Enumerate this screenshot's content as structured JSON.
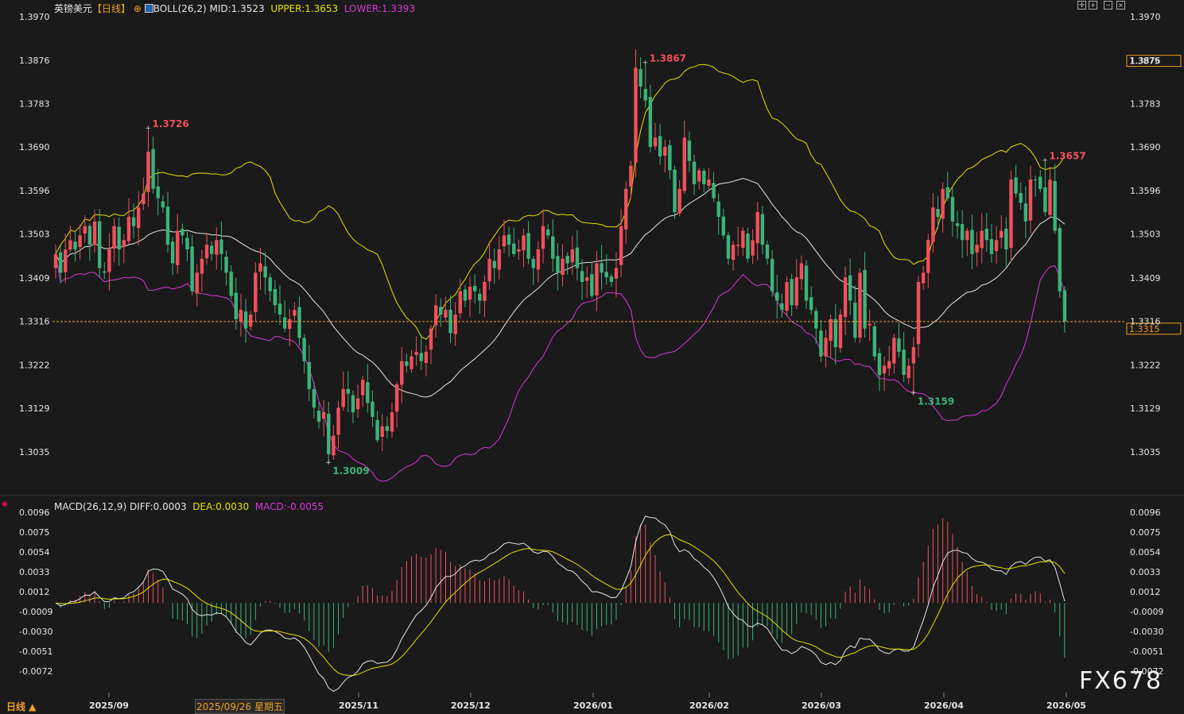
{
  "header": {
    "symbol": "英镑美元",
    "period": "【日线】",
    "boll_label": "BOLL(26,2)",
    "boll_mid": "MID:1.3523",
    "boll_upper": "UPPER:1.3653",
    "boll_lower": "LOWER:1.3393",
    "macd_label": "MACD(26,12,9)",
    "macd_diff": "DIFF:0.0003",
    "macd_dea": "DEA:0.0030",
    "macd_macd": "MACD:-0.0055"
  },
  "bottom": {
    "period_button": "日线 ▲",
    "crosshair_date": "2025/09/26 星期五",
    "watermark": "FX678"
  },
  "colors": {
    "up": "#f0505a",
    "down": "#3cb37a",
    "mid": "#e6e6e6",
    "upper": "#e8e000",
    "lower": "#d63ad6",
    "price_line": "#f0a020",
    "background": "#1a1a1a"
  },
  "chart_data": [
    {
      "type": "candlestick",
      "name": "price",
      "y_ticks": [
        "1.3970",
        "1.3876",
        "1.3783",
        "1.3690",
        "1.3596",
        "1.3503",
        "1.3409",
        "1.3316",
        "1.3222",
        "1.3129",
        "1.3035"
      ],
      "ylim": [
        1.2965,
        1.3975
      ],
      "x_ticks": [
        "2025/09",
        "2025/11",
        "2025/12",
        "2026/01",
        "2026/02",
        "2026/03",
        "2026/04",
        "2026/05"
      ],
      "annotations": [
        {
          "label": "1.3726",
          "kind": "high"
        },
        {
          "label": "1.3009",
          "kind": "low"
        },
        {
          "label": "1.3867",
          "kind": "high"
        },
        {
          "label": "1.3159",
          "kind": "low"
        },
        {
          "label": "1.3657",
          "kind": "high"
        }
      ],
      "right_tags": {
        "upper": "1.3875",
        "last": "1.3315"
      },
      "last_price": 1.3315,
      "closes": [
        1.346,
        1.342,
        1.347,
        1.349,
        1.347,
        1.35,
        1.352,
        1.348,
        1.353,
        1.343,
        1.342,
        1.347,
        1.352,
        1.347,
        1.349,
        1.354,
        1.352,
        1.356,
        1.359,
        1.368,
        1.36,
        1.358,
        1.356,
        1.348,
        1.344,
        1.351,
        1.35,
        1.347,
        1.338,
        1.342,
        1.345,
        1.348,
        1.346,
        1.349,
        1.346,
        1.342,
        1.337,
        1.332,
        1.334,
        1.33,
        1.333,
        1.342,
        1.344,
        1.341,
        1.338,
        1.335,
        1.333,
        1.33,
        1.332,
        1.334,
        1.328,
        1.323,
        1.317,
        1.313,
        1.31,
        1.312,
        1.303,
        1.307,
        1.313,
        1.317,
        1.316,
        1.312,
        1.315,
        1.319,
        1.314,
        1.311,
        1.306,
        1.309,
        1.308,
        1.312,
        1.318,
        1.323,
        1.322,
        1.324,
        1.325,
        1.323,
        1.325,
        1.33,
        1.335,
        1.333,
        1.334,
        1.329,
        1.333,
        1.338,
        1.336,
        1.339,
        1.338,
        1.336,
        1.34,
        1.345,
        1.343,
        1.347,
        1.35,
        1.348,
        1.346,
        1.347,
        1.35,
        1.345,
        1.343,
        1.347,
        1.352,
        1.35,
        1.345,
        1.342,
        1.345,
        1.344,
        1.347,
        1.343,
        1.34,
        1.341,
        1.337,
        1.344,
        1.342,
        1.341,
        1.34,
        1.343,
        1.352,
        1.36,
        1.365,
        1.386,
        1.382,
        1.379,
        1.369,
        1.371,
        1.367,
        1.369,
        1.364,
        1.355,
        1.36,
        1.371,
        1.366,
        1.361,
        1.364,
        1.361,
        1.362,
        1.358,
        1.354,
        1.35,
        1.345,
        1.348,
        1.348,
        1.351,
        1.345,
        1.349,
        1.355,
        1.348,
        1.345,
        1.338,
        1.336,
        1.334,
        1.34,
        1.335,
        1.341,
        1.344,
        1.336,
        1.334,
        1.33,
        1.324,
        1.328,
        1.332,
        1.326,
        1.333,
        1.341,
        1.336,
        1.328,
        1.342,
        1.33,
        1.331,
        1.324,
        1.32,
        1.322,
        1.323,
        1.328,
        1.325,
        1.32,
        1.322,
        1.326,
        1.34,
        1.342,
        1.349,
        1.356,
        1.354,
        1.36,
        1.358,
        1.353,
        1.352,
        1.349,
        1.351,
        1.346,
        1.348,
        1.351,
        1.349,
        1.346,
        1.349,
        1.351,
        1.347,
        1.362,
        1.359,
        1.357,
        1.353,
        1.362,
        1.362,
        1.36,
        1.355,
        1.362,
        1.351,
        1.338,
        1.3315
      ]
    },
    {
      "type": "macd",
      "name": "MACD(26,12,9)",
      "y_ticks": [
        "0.0096",
        "0.0075",
        "0.0054",
        "0.0033",
        "0.0012",
        "-0.0009",
        "-0.0030",
        "-0.0051",
        "-0.0072"
      ],
      "ylim": [
        -0.0093,
        0.01
      ]
    }
  ]
}
